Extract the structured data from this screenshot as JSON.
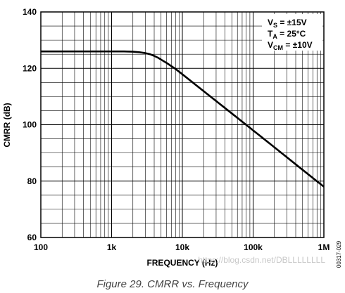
{
  "chart_data": {
    "type": "line",
    "x_scale": "log",
    "xlabel": "FREQUENCY (Hz)",
    "ylabel": "CMRR (dB)",
    "xlim": [
      100,
      1000000
    ],
    "ylim": [
      60,
      140
    ],
    "x_ticks": [
      100,
      1000,
      10000,
      100000,
      1000000
    ],
    "x_tick_labels": [
      "100",
      "1k",
      "10k",
      "100k",
      "1M"
    ],
    "y_ticks": [
      60,
      80,
      100,
      120,
      140
    ],
    "y_tick_labels": [
      "60",
      "80",
      "100",
      "120",
      "140"
    ],
    "grid": true,
    "series": [
      {
        "x": [
          100,
          200,
          500,
          1000,
          1500,
          2000,
          2500,
          3000,
          3500,
          4000,
          4500,
          5000,
          6000,
          8000,
          10000,
          20000,
          50000,
          100000,
          200000,
          500000,
          1000000
        ],
        "values": [
          126,
          126,
          126,
          126,
          126,
          125.9,
          125.7,
          125.4,
          125.0,
          124.4,
          123.8,
          123.1,
          121.9,
          119.8,
          117.9,
          111.9,
          104.0,
          98.0,
          92.0,
          84.0,
          78.0
        ]
      }
    ]
  },
  "conditions": {
    "vs": {
      "main": "V",
      "sub": "S",
      "rest": " = ±15V"
    },
    "ta": {
      "main": "T",
      "sub": "A",
      "rest": " = 25°C"
    },
    "vcm": {
      "main": "V",
      "sub": "CM",
      "rest": " = ±10V"
    }
  },
  "figure_code": "00317-029",
  "watermark": "https://blog.csdn.net/DBLLLLLLLL",
  "caption": "Figure 29. CMRR vs. Frequency"
}
